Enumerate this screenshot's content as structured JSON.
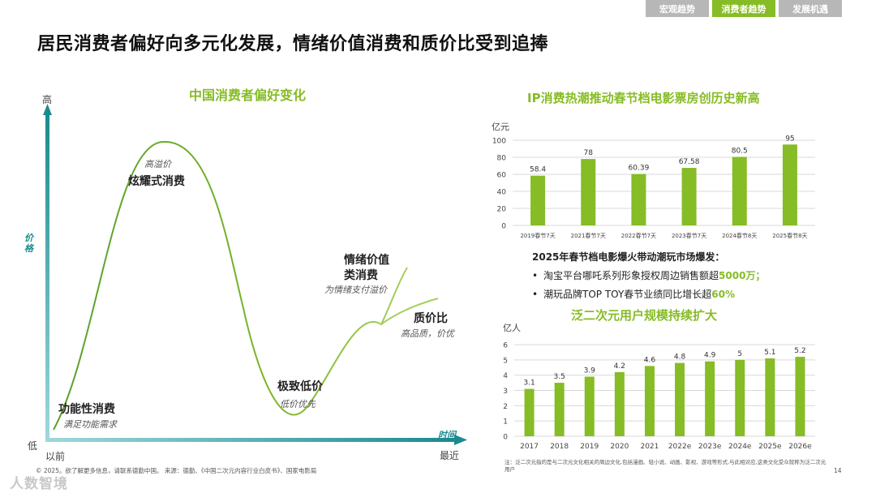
{
  "tabs": [
    {
      "label": "宏观趋势",
      "active": false
    },
    {
      "label": "消费者趋势",
      "active": true
    },
    {
      "label": "发展机遇",
      "active": false
    }
  ],
  "page_title": "居民消费者偏好向多元化发展，情绪价值消费和质价比受到追捧",
  "left_chart": {
    "title": "中国消费者偏好变化",
    "y_axis_title": "价格",
    "x_axis_title": "时间",
    "y_high": "高",
    "y_low": "低",
    "x_start": "以前",
    "x_end": "最近",
    "stages": [
      {
        "label": "功能性消费",
        "sub": "满足功能需求"
      },
      {
        "label": "炫耀式消费",
        "sub": "高溢价"
      },
      {
        "label": "极致低价",
        "sub": "低价优先"
      },
      {
        "label": "情绪价值",
        "label2": "类消费",
        "sub": "为情绪支付溢价"
      },
      {
        "label": "质价比",
        "sub": "高品质，价优"
      }
    ]
  },
  "right_top": {
    "title": "IP消费热潮推动春节档电影票房创历史新高",
    "unit": "亿元"
  },
  "bullets": {
    "heading": "2025年春节档电影爆火带动潮玩市场爆发：",
    "items": [
      {
        "text": "淘宝平台哪吒系列形象授权周边销售额超",
        "highlight": "5000万；"
      },
      {
        "text": "潮玩品牌TOP TOY春节业绩同比增长超",
        "highlight": "60%"
      }
    ]
  },
  "right_bottom": {
    "title": "泛二次元用户规模持续扩大",
    "unit": "亿人",
    "note": "注：泛二次元指的是与二次元文化相关的周边文化,包括漫画、轻小说、动画、影视、游戏等形式,与此相对应,这类文化受众就称为泛二次元用户"
  },
  "footer": {
    "copyright": "© 2025。欲了解更多信息，请联系德勤中国。    来源：德勤、《中国二次元内容行业白皮书》、国家电影局",
    "page": "14",
    "brand": "人数智境"
  },
  "colors": {
    "green": "#86bc25",
    "teal": "#1a8a8f",
    "grey_tab": "#b7b7b7"
  },
  "chart_data": [
    {
      "type": "line",
      "title": "中国消费者偏好变化",
      "xlabel": "时间",
      "ylabel": "价格",
      "categories": [
        "功能性消费",
        "炫耀式消费",
        "极致低价",
        "情绪价值类消费",
        "质价比"
      ],
      "note": "qualitative curve: price level rises to 炫耀式消费 peak, falls to 极致低价 trough, then rises to 情绪价值/质价比"
    },
    {
      "type": "bar",
      "title": "IP消费热潮推动春节档电影票房创历史新高",
      "ylabel": "亿元",
      "categories": [
        "2019春节7天",
        "2021春节7天",
        "2022春节7天",
        "2023春节7天",
        "2024春节8天",
        "2025春节8天"
      ],
      "values": [
        58.4,
        78,
        60.39,
        67.58,
        80.5,
        95
      ],
      "labels": [
        "58.4",
        "78",
        "60.39",
        "67.58",
        "80.5",
        "95"
      ],
      "yticks": [
        0,
        20,
        40,
        60,
        80,
        100
      ],
      "ylim": [
        0,
        100
      ]
    },
    {
      "type": "bar",
      "title": "泛二次元用户规模持续扩大",
      "ylabel": "亿人",
      "categories": [
        "2017",
        "2018",
        "2019",
        "2020",
        "2021",
        "2022e",
        "2023e",
        "2024e",
        "2025e",
        "2026e"
      ],
      "values": [
        3.1,
        3.5,
        3.9,
        4.2,
        4.6,
        4.8,
        4.9,
        5,
        5.1,
        5.2
      ],
      "labels": [
        "3.1",
        "3.5",
        "3.9",
        "4.2",
        "4.6",
        "4.8",
        "4.9",
        "5",
        "5.1",
        "5.2"
      ],
      "yticks": [
        0,
        1,
        2,
        3,
        4,
        5,
        6
      ],
      "ylim": [
        0,
        6
      ]
    }
  ]
}
